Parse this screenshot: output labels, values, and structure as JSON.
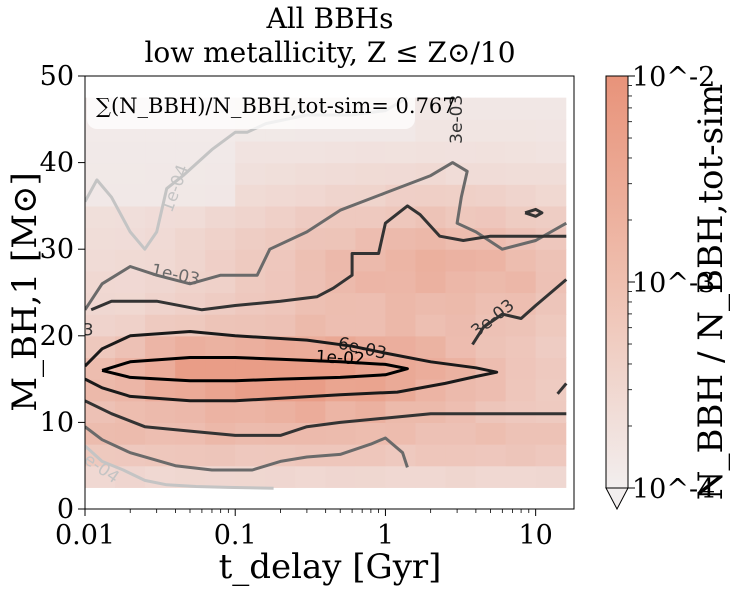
{
  "chart_data": {
    "type": "heatmap",
    "title_line1": "All BBHs",
    "title_line2": "low metallicity,  Z ≤ Z⊙/10",
    "xlabel": "t_delay [Gyr]",
    "ylabel": "M_BH,1 [M⊙]",
    "xscale": "log",
    "xlim": [
      0.01,
      18
    ],
    "ylim": [
      0,
      50
    ],
    "xticks": [
      {
        "value": 0.01,
        "label": "0.01"
      },
      {
        "value": 0.1,
        "label": "0.1"
      },
      {
        "value": 1,
        "label": "1"
      },
      {
        "value": 10,
        "label": "10"
      }
    ],
    "yticks": [
      {
        "value": 0,
        "label": "0"
      },
      {
        "value": 10,
        "label": "10"
      },
      {
        "value": 20,
        "label": "20"
      },
      {
        "value": 30,
        "label": "30"
      },
      {
        "value": 40,
        "label": "40"
      },
      {
        "value": 50,
        "label": "50"
      }
    ],
    "annotation": "∑(N_BBH)/N_BBH,tot-sim= 0.767",
    "colorbar": {
      "label": "N_BBH / N_BBH,tot-sim",
      "scale": "log",
      "range": [
        0.0001,
        0.01
      ],
      "ticks": [
        "10^-2",
        "10^-3",
        "10^-4"
      ],
      "colormap": [
        "#f2eeee",
        "#e8937a"
      ]
    },
    "cell_grid": {
      "x_edges_log10": [
        -2,
        -1.8,
        -1.6,
        -1.4,
        -1.2,
        -1,
        -0.8,
        -0.6,
        -0.4,
        -0.2,
        0,
        0.2,
        0.4,
        0.6,
        0.8,
        1,
        1.2
      ],
      "y_edges": [
        2.5,
        5,
        7.5,
        10,
        12.5,
        15,
        17.5,
        20,
        22.5,
        25,
        27.5,
        30,
        32.5,
        35,
        37.5,
        40,
        42.5,
        45,
        47.5
      ]
    },
    "contours": [
      {
        "level": "1e-04",
        "color": "#c4c4c4",
        "points": [
          [
            0.01,
            35.5
          ],
          [
            0.012,
            38
          ],
          [
            0.015,
            36
          ],
          [
            0.02,
            32
          ],
          [
            0.025,
            30
          ],
          [
            0.03,
            32
          ],
          [
            0.035,
            37
          ],
          [
            0.045,
            38.5
          ],
          [
            0.07,
            41.5
          ],
          [
            0.1,
            43.5
          ],
          [
            0.12,
            43.5
          ],
          [
            0.16,
            44.5
          ],
          [
            0.3,
            45.5
          ],
          [
            0.6,
            45.5
          ],
          [
            1.0,
            46
          ],
          [
            1.4,
            47.5
          ]
        ]
      },
      {
        "level": "1e-04",
        "color": "#c4c4c4",
        "points": [
          [
            0.01,
            7.3
          ],
          [
            0.013,
            5.5
          ],
          [
            0.018,
            4.5
          ],
          [
            0.025,
            3.3
          ],
          [
            0.035,
            2.8
          ],
          [
            0.055,
            2.6
          ],
          [
            0.09,
            2.5
          ],
          [
            0.18,
            2.4
          ]
        ]
      },
      {
        "level": "1e-03",
        "color": "#6a6a6a",
        "points": [
          [
            0.01,
            23
          ],
          [
            0.013,
            26
          ],
          [
            0.02,
            28
          ],
          [
            0.03,
            27
          ],
          [
            0.05,
            26
          ],
          [
            0.08,
            27
          ],
          [
            0.14,
            27
          ],
          [
            0.17,
            30
          ],
          [
            0.3,
            32
          ],
          [
            0.5,
            34.5
          ],
          [
            1.0,
            36.5
          ],
          [
            2,
            38.5
          ],
          [
            2.8,
            40
          ],
          [
            3.5,
            39
          ],
          [
            3.2,
            36
          ],
          [
            3.0,
            33
          ],
          [
            4,
            32
          ],
          [
            6,
            30
          ],
          [
            10,
            31
          ],
          [
            16,
            33
          ]
        ]
      },
      {
        "level": "1e-03",
        "color": "#6a6a6a",
        "points": [
          [
            0.01,
            9.5
          ],
          [
            0.013,
            8
          ],
          [
            0.02,
            6.5
          ],
          [
            0.04,
            5.0
          ],
          [
            0.07,
            4.5
          ],
          [
            0.13,
            4.5
          ],
          [
            0.2,
            5.5
          ],
          [
            0.3,
            6.0
          ],
          [
            0.5,
            6.3
          ],
          [
            0.8,
            7.5
          ],
          [
            1.0,
            8.2
          ],
          [
            1.3,
            6.5
          ],
          [
            1.4,
            4.8
          ]
        ]
      },
      {
        "level": "3e-03",
        "color": "#333333",
        "points": [
          [
            0.011,
            23
          ],
          [
            0.015,
            24
          ],
          [
            0.03,
            24
          ],
          [
            0.06,
            23
          ],
          [
            0.1,
            23.5
          ],
          [
            0.2,
            24
          ],
          [
            0.35,
            24.5
          ],
          [
            0.45,
            25.5
          ],
          [
            0.6,
            27
          ],
          [
            0.6,
            29.5
          ],
          [
            0.9,
            29.5
          ],
          [
            1.0,
            33
          ],
          [
            1.4,
            35
          ],
          [
            1.7,
            34
          ],
          [
            2.3,
            31.5
          ],
          [
            3.3,
            31
          ],
          [
            5,
            31.5
          ],
          [
            8,
            31.5
          ],
          [
            16,
            31.5
          ]
        ]
      },
      {
        "level": "3e-03",
        "color": "#333333",
        "points": [
          [
            0.01,
            12.5
          ],
          [
            0.015,
            11
          ],
          [
            0.025,
            9.5
          ],
          [
            0.05,
            9
          ],
          [
            0.1,
            8.5
          ],
          [
            0.2,
            8.5
          ],
          [
            0.3,
            9.5
          ],
          [
            0.5,
            10
          ],
          [
            1.0,
            10.5
          ],
          [
            2,
            11
          ],
          [
            4,
            11
          ],
          [
            10,
            11
          ],
          [
            16,
            11
          ]
        ]
      },
      {
        "level": "3e-03",
        "color": "#333333",
        "points": [
          [
            3.8,
            19
          ],
          [
            4.5,
            21
          ],
          [
            6,
            22.5
          ],
          [
            8,
            22
          ],
          [
            10,
            23.5
          ],
          [
            16,
            26.5
          ]
        ]
      },
      {
        "level": "3e-03",
        "color": "#333333",
        "points": [
          [
            14,
            13.3
          ],
          [
            16,
            14.5
          ]
        ]
      },
      {
        "level": "3e-03",
        "color": "#333333",
        "points": [
          [
            8.5,
            34.2
          ],
          [
            10,
            34.6
          ],
          [
            11,
            34.2
          ],
          [
            10,
            33.8
          ],
          [
            8.5,
            34.2
          ]
        ]
      },
      {
        "level": "6e-03",
        "color": "#1a1a1a",
        "points": [
          [
            0.01,
            16.5
          ],
          [
            0.013,
            18.5
          ],
          [
            0.02,
            20
          ],
          [
            0.05,
            20.5
          ],
          [
            0.1,
            20
          ],
          [
            0.3,
            19.5
          ],
          [
            0.6,
            18.8
          ],
          [
            1.0,
            18
          ],
          [
            2,
            17
          ],
          [
            4,
            16.3
          ],
          [
            5.5,
            15.8
          ],
          [
            4,
            15.3
          ],
          [
            2.5,
            14.5
          ],
          [
            1.2,
            13.5
          ],
          [
            0.5,
            13.2
          ],
          [
            0.2,
            12.8
          ],
          [
            0.1,
            12.5
          ],
          [
            0.05,
            12.5
          ],
          [
            0.02,
            13
          ],
          [
            0.013,
            14
          ],
          [
            0.01,
            15
          ]
        ]
      },
      {
        "level": "1e-02",
        "color": "#000000",
        "points": [
          [
            0.013,
            16
          ],
          [
            0.02,
            17
          ],
          [
            0.05,
            17.5
          ],
          [
            0.1,
            17.5
          ],
          [
            0.2,
            17.3
          ],
          [
            0.5,
            17
          ],
          [
            1,
            16.7
          ],
          [
            1.4,
            16.2
          ],
          [
            1.0,
            15.5
          ],
          [
            0.5,
            15.2
          ],
          [
            0.2,
            15
          ],
          [
            0.1,
            14.8
          ],
          [
            0.05,
            14.8
          ],
          [
            0.02,
            15.2
          ],
          [
            0.013,
            16
          ]
        ]
      }
    ],
    "contour_labels": [
      {
        "text": "1e-04",
        "x": 0.04,
        "y": 37,
        "angle": -70,
        "color": "#c4c4c4"
      },
      {
        "text": "1e-04",
        "x": 0.012,
        "y": 5,
        "angle": 35,
        "color": "#c4c4c4"
      },
      {
        "text": "1e-03",
        "x": 0.04,
        "y": 27,
        "angle": 12,
        "color": "#6a6a6a"
      },
      {
        "text": "3e-03",
        "x": 3.0,
        "y": 45,
        "angle": -90,
        "color": "#333333"
      },
      {
        "text": "3e-03",
        "x": 5.2,
        "y": 22,
        "angle": -38,
        "color": "#333333"
      },
      {
        "text": "6e-03",
        "x": 0.7,
        "y": 18.5,
        "angle": 13,
        "color": "#1a1a1a"
      },
      {
        "text": "1e-02",
        "x": 0.5,
        "y": 17.4,
        "angle": 3,
        "color": "#000000"
      },
      {
        "text": "3",
        "x": 0.0105,
        "y": 20.6,
        "angle": 0,
        "color": "#333333"
      }
    ]
  }
}
